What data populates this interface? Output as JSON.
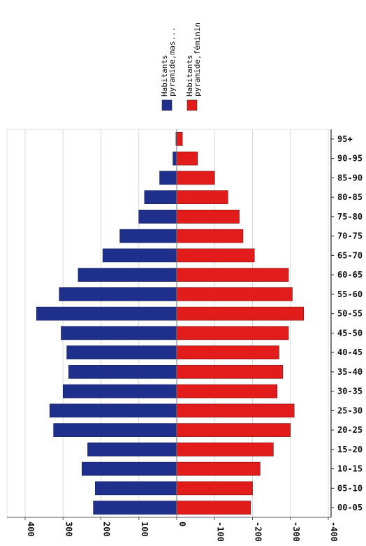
{
  "chart_data": {
    "type": "bar",
    "orientation": "population-pyramid (horizontal bars, image rotated)",
    "legend": {
      "placement": "top",
      "entries": [
        {
          "label_line1": "Habitants",
          "label_line2": "pyramide,mas...",
          "color": "#1f2f8c"
        },
        {
          "label_line1": "Habitants",
          "label_line2": "pyramide,féminin",
          "color": "#e21b1b"
        }
      ]
    },
    "categories": [
      "00-05",
      "05-10",
      "10-15",
      "15-20",
      "20-25",
      "25-30",
      "30-35",
      "35-40",
      "40-45",
      "45-50",
      "50-55",
      "55-60",
      "60-65",
      "65-70",
      "70-75",
      "75-80",
      "80-85",
      "85-90",
      "90-95",
      "95+"
    ],
    "series": [
      {
        "name": "Habitants pyramide,mas...",
        "values": [
          220,
          215,
          250,
          235,
          325,
          335,
          300,
          285,
          290,
          305,
          370,
          310,
          260,
          195,
          150,
          100,
          85,
          45,
          10,
          2
        ]
      },
      {
        "name": "Habitants pyramide,féminin",
        "values": [
          -195,
          -200,
          -220,
          -255,
          -300,
          -310,
          -265,
          -280,
          -270,
          -295,
          -335,
          -305,
          -295,
          -205,
          -175,
          -165,
          -135,
          -100,
          -55,
          -15
        ]
      }
    ],
    "value_axis": {
      "ticks": [
        "400",
        "300",
        "200",
        "100",
        "0",
        "-100",
        "-200",
        "-300",
        "-400"
      ],
      "range": [
        400,
        -400
      ]
    },
    "grid": "vertical",
    "colors": {
      "male": "#1f2f8c",
      "female": "#e21b1b",
      "grid": "#d8d8d8"
    }
  }
}
